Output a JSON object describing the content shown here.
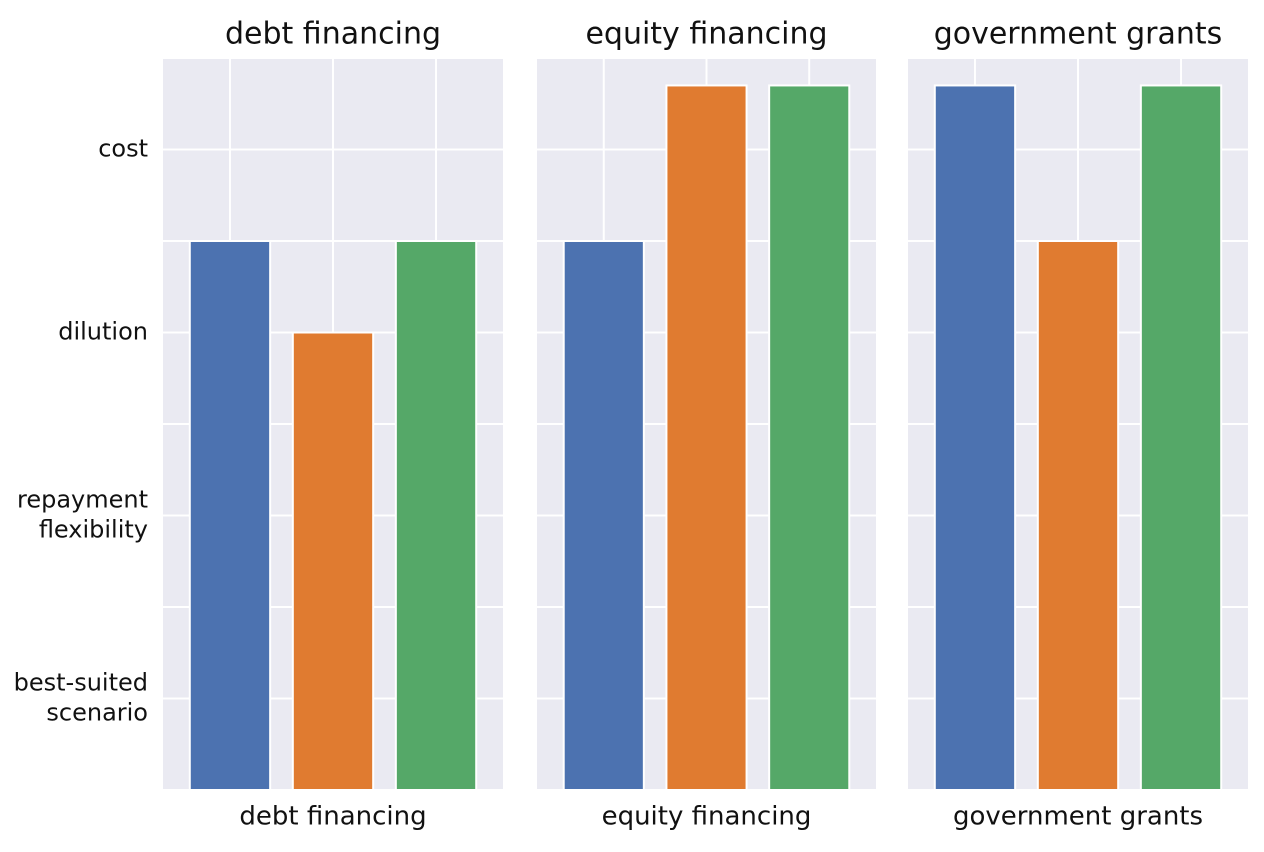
{
  "chart_data": [
    {
      "type": "bar",
      "title": "debt financing",
      "xlabel": "debt financing",
      "values": [
        6,
        5,
        6
      ],
      "colors": [
        "#4c72b0",
        "#e07b30",
        "#55a868"
      ],
      "ylim": [
        0,
        8
      ],
      "yticks": [
        {
          "value": 1,
          "label": "best-suited scenario"
        },
        {
          "value": 3,
          "label": "repayment flexibility"
        },
        {
          "value": 5,
          "label": "dilution"
        },
        {
          "value": 7,
          "label": "cost"
        }
      ],
      "minor_yticks": [
        0,
        2,
        4,
        6,
        8
      ],
      "grid": true
    },
    {
      "type": "bar",
      "title": "equity financing",
      "xlabel": "equity financing",
      "values": [
        6,
        7.7,
        7.7
      ],
      "colors": [
        "#4c72b0",
        "#e07b30",
        "#55a868"
      ],
      "ylim": [
        0,
        8
      ],
      "yticks": [
        1,
        3,
        5,
        7
      ],
      "minor_yticks": [
        0,
        2,
        4,
        6,
        8
      ],
      "grid": true
    },
    {
      "type": "bar",
      "title": "government grants",
      "xlabel": "government grants",
      "values": [
        7.7,
        6,
        7.7
      ],
      "colors": [
        "#4c72b0",
        "#e07b30",
        "#55a868"
      ],
      "ylim": [
        0,
        8
      ],
      "yticks": [
        1,
        3,
        5,
        7
      ],
      "minor_yticks": [
        0,
        2,
        4,
        6,
        8
      ],
      "grid": true
    }
  ]
}
